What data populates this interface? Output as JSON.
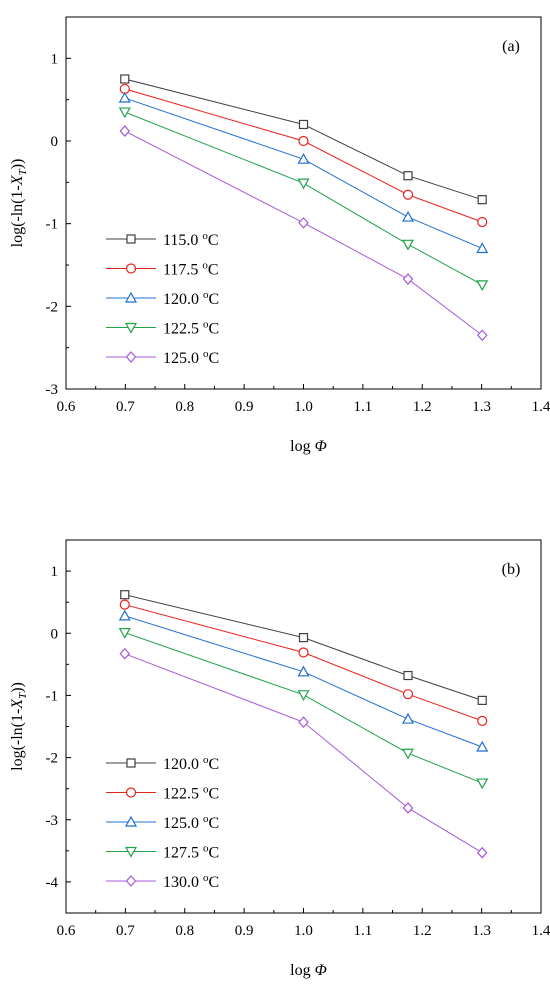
{
  "chart_data": [
    {
      "type": "line",
      "panel_label": "(a)",
      "xlabel_prefix": "log",
      "xlabel_symbol": "Φ",
      "ylabel_prefix": "log(-ln(1-",
      "ylabel_symbol": "X",
      "ylabel_sub": "T",
      "ylabel_suffix": "))",
      "xlim": [
        0.6,
        1.4
      ],
      "ylim": [
        -3,
        1.5
      ],
      "xticks": [
        "0.6",
        "0.7",
        "0.8",
        "0.9",
        "1.0",
        "1.1",
        "1.2",
        "1.3",
        "1.4"
      ],
      "yticks": [
        "-3",
        "-2",
        "-1",
        "0",
        "1"
      ],
      "x": [
        0.699,
        1.0,
        1.176,
        1.301
      ],
      "legend_position": "lower-left",
      "series": [
        {
          "name": "115.0 °C",
          "num": "115.0",
          "unit": "C",
          "marker": "square",
          "color": "#404040",
          "values": [
            0.75,
            0.2,
            -0.42,
            -0.71
          ]
        },
        {
          "name": "117.5 °C",
          "num": "117.5",
          "unit": "C",
          "marker": "circle",
          "color": "#e8231d",
          "values": [
            0.63,
            0.0,
            -0.65,
            -0.98
          ]
        },
        {
          "name": "120.0 °C",
          "num": "120.0",
          "unit": "C",
          "marker": "triangle-up",
          "color": "#1f6fd1",
          "values": [
            0.52,
            -0.22,
            -0.92,
            -1.3
          ]
        },
        {
          "name": "122.5 °C",
          "num": "122.5",
          "unit": "C",
          "marker": "triangle-down",
          "color": "#22a24a",
          "values": [
            0.35,
            -0.51,
            -1.25,
            -1.74
          ]
        },
        {
          "name": "125.0 °C",
          "num": "125.0",
          "unit": "C",
          "marker": "diamond",
          "color": "#a55ad8",
          "values": [
            0.12,
            -0.99,
            -1.67,
            -2.35
          ]
        }
      ]
    },
    {
      "type": "line",
      "panel_label": "(b)",
      "xlabel_prefix": "log",
      "xlabel_symbol": "Φ",
      "ylabel_prefix": "log(-ln(1-",
      "ylabel_symbol": "X",
      "ylabel_sub": "T",
      "ylabel_suffix": "))",
      "xlim": [
        0.6,
        1.4
      ],
      "ylim": [
        -4.5,
        1.5
      ],
      "xticks": [
        "0.6",
        "0.7",
        "0.8",
        "0.9",
        "1.0",
        "1.1",
        "1.2",
        "1.3",
        "1.4"
      ],
      "yticks": [
        "-4",
        "-3",
        "-2",
        "-1",
        "0",
        "1"
      ],
      "x": [
        0.699,
        1.0,
        1.176,
        1.301
      ],
      "legend_position": "lower-left",
      "series": [
        {
          "name": "120.0 °C",
          "num": "120.0",
          "unit": "C",
          "marker": "square",
          "color": "#404040",
          "values": [
            0.62,
            -0.07,
            -0.68,
            -1.08
          ]
        },
        {
          "name": "122.5 °C",
          "num": "122.5",
          "unit": "C",
          "marker": "circle",
          "color": "#e8231d",
          "values": [
            0.46,
            -0.31,
            -0.98,
            -1.41
          ]
        },
        {
          "name": "125.0 °C",
          "num": "125.0",
          "unit": "C",
          "marker": "triangle-up",
          "color": "#1f6fd1",
          "values": [
            0.28,
            -0.62,
            -1.38,
            -1.83
          ]
        },
        {
          "name": "127.5 °C",
          "num": "127.5",
          "unit": "C",
          "marker": "triangle-down",
          "color": "#22a24a",
          "values": [
            0.01,
            -0.99,
            -1.93,
            -2.41
          ]
        },
        {
          "name": "130.0 °C",
          "num": "130.0",
          "unit": "C",
          "marker": "diamond",
          "color": "#a55ad8",
          "values": [
            -0.33,
            -1.43,
            -2.81,
            -3.53
          ]
        }
      ]
    }
  ]
}
